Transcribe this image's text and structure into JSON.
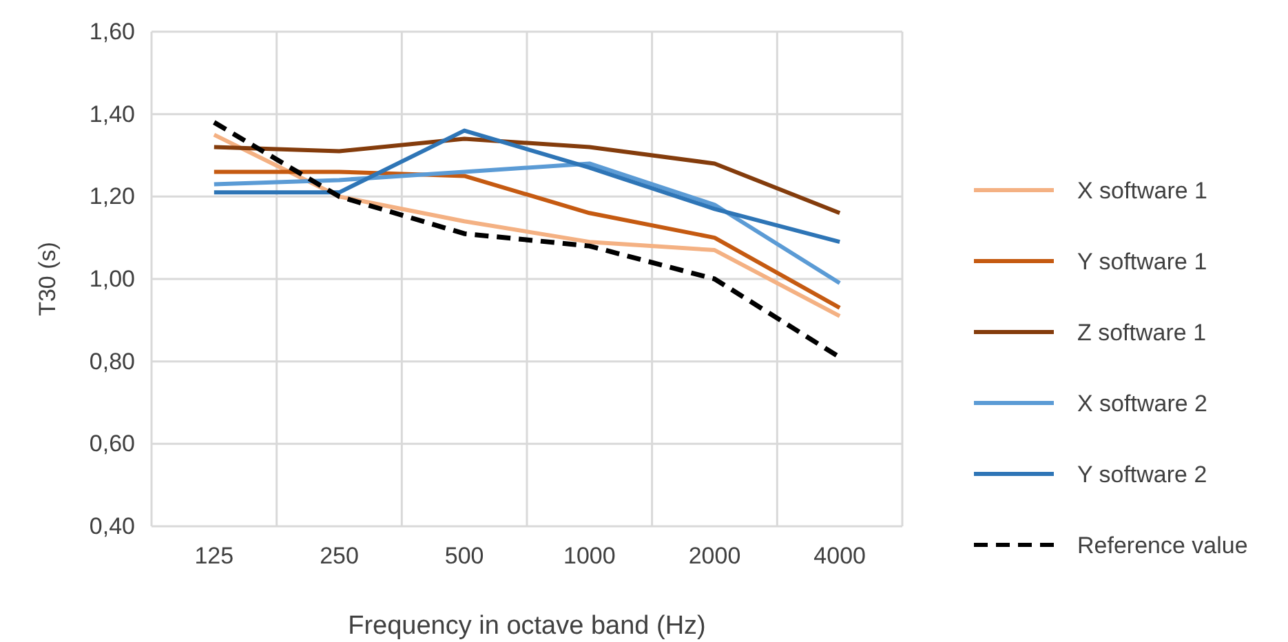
{
  "chart_data": {
    "type": "line",
    "xlabel": "Frequency in octave band (Hz)",
    "ylabel": "T30 (s)",
    "categories": [
      "125",
      "250",
      "500",
      "1000",
      "2000",
      "4000"
    ],
    "ylim": [
      0.4,
      1.6
    ],
    "yticks": [
      {
        "value": 0.4,
        "label": "0,40"
      },
      {
        "value": 0.6,
        "label": "0,60"
      },
      {
        "value": 0.8,
        "label": "0,80"
      },
      {
        "value": 1.0,
        "label": "1,00"
      },
      {
        "value": 1.2,
        "label": "1,20"
      },
      {
        "value": 1.4,
        "label": "1,40"
      },
      {
        "value": 1.6,
        "label": "1,60"
      }
    ],
    "grid": true,
    "legend": "right",
    "marker": "none",
    "series": [
      {
        "name": "X software 1",
        "color": "#f4b183",
        "values": [
          1.35,
          1.2,
          1.14,
          1.09,
          1.07,
          0.91
        ]
      },
      {
        "name": "Y software 1",
        "color": "#c55a11",
        "values": [
          1.26,
          1.26,
          1.25,
          1.16,
          1.1,
          0.93
        ]
      },
      {
        "name": "Z software 1",
        "color": "#843c0c",
        "values": [
          1.32,
          1.31,
          1.34,
          1.32,
          1.28,
          1.16
        ]
      },
      {
        "name": "X software 2",
        "color": "#5b9bd5",
        "values": [
          1.23,
          1.24,
          1.26,
          1.28,
          1.18,
          0.99
        ]
      },
      {
        "name": "Y software 2",
        "color": "#2e75b6",
        "values": [
          1.21,
          1.21,
          1.36,
          1.27,
          1.17,
          1.09
        ]
      },
      {
        "name": "Reference value",
        "color": "#000000",
        "line_style": "dashed",
        "values": [
          1.38,
          1.2,
          1.11,
          1.08,
          1.0,
          0.81
        ]
      }
    ]
  }
}
